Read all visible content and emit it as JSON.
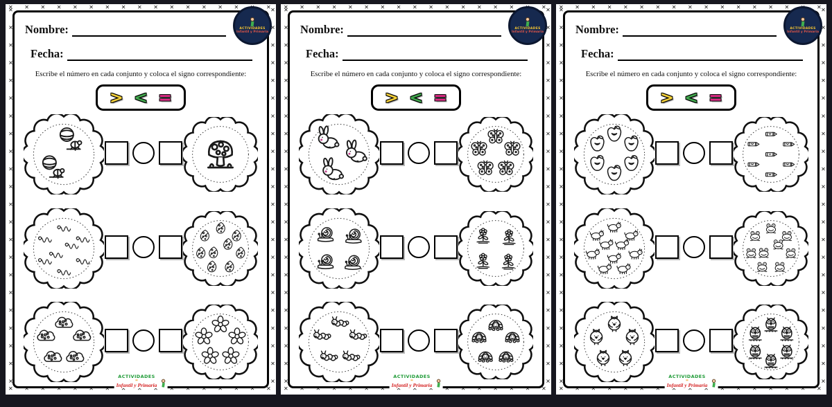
{
  "decoration": {
    "backdrop_color": "#17171f",
    "page_color": "#ffffff",
    "stitch_glyph": "✕",
    "badge_bg_color": "#16294f"
  },
  "page": {
    "name_label": "Nombre:",
    "date_label": "Fecha:",
    "instruction": "Escribe el número en cada conjunto y coloca el signo correspondiente:",
    "signs": {
      "greater": ">",
      "less": "<",
      "equal": "="
    },
    "sign_colors": {
      "greater": "#f1ce39",
      "less": "#41a64d",
      "equal": "#e62e8b"
    },
    "badge": {
      "line1": "ACTIVIDADES",
      "line2": "Infantil y Primaria"
    },
    "footer": {
      "line1": "ACTIVIDADES",
      "separator": "=",
      "line2": "Infantil y Primaria"
    }
  },
  "pages": [
    {
      "rows": [
        {
          "left": {
            "item": "beetle",
            "count": 2
          },
          "right": {
            "item": "mushroom",
            "count": 1
          }
        },
        {
          "left": {
            "item": "worm",
            "count": 8
          },
          "right": {
            "item": "leaf",
            "count": 9
          }
        },
        {
          "left": {
            "item": "cloud",
            "count": 5
          },
          "right": {
            "item": "flower",
            "count": 5
          }
        }
      ]
    },
    {
      "rows": [
        {
          "left": {
            "item": "rabbit",
            "count": 3
          },
          "right": {
            "item": "butterfly",
            "count": 5
          }
        },
        {
          "left": {
            "item": "snail",
            "count": 4
          },
          "right": {
            "item": "plant",
            "count": 4
          }
        },
        {
          "left": {
            "item": "caterpillar",
            "count": 5
          },
          "right": {
            "item": "turtle",
            "count": 5
          }
        }
      ]
    },
    {
      "rows": [
        {
          "left": {
            "item": "apple",
            "count": 6
          },
          "right": {
            "item": "crayon",
            "count": 7
          }
        },
        {
          "left": {
            "item": "dinosaur",
            "count": 10
          },
          "right": {
            "item": "frog",
            "count": 9
          }
        },
        {
          "left": {
            "item": "bird",
            "count": 5
          },
          "right": {
            "item": "owl",
            "count": 6
          }
        }
      ]
    }
  ]
}
